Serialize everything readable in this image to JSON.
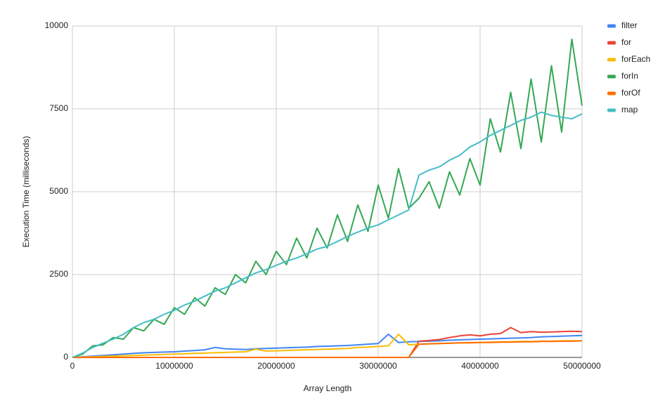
{
  "chart_data": {
    "type": "line",
    "xlabel": "Array Length",
    "ylabel": "Execution Time (milliseconds)",
    "xlim": [
      0,
      50000000
    ],
    "xticks": [
      0,
      10000000,
      20000000,
      30000000,
      40000000,
      50000000
    ],
    "ylim": [
      0,
      10000
    ],
    "yticks": [
      0,
      2500,
      5000,
      7500,
      10000
    ],
    "grid": true,
    "legend": "right",
    "x": [
      0,
      1000000,
      2000000,
      3000000,
      4000000,
      5000000,
      6000000,
      7000000,
      8000000,
      9000000,
      10000000,
      11000000,
      12000000,
      13000000,
      14000000,
      15000000,
      16000000,
      17000000,
      18000000,
      19000000,
      20000000,
      21000000,
      22000000,
      23000000,
      24000000,
      25000000,
      26000000,
      27000000,
      28000000,
      29000000,
      30000000,
      31000000,
      32000000,
      33000000,
      34000000,
      35000000,
      36000000,
      37000000,
      38000000,
      39000000,
      40000000,
      41000000,
      42000000,
      43000000,
      44000000,
      45000000,
      46000000,
      47000000,
      48000000,
      49000000,
      50000000
    ],
    "series": [
      {
        "name": "filter",
        "color": "#4285f4",
        "values": [
          0,
          20,
          40,
          60,
          80,
          100,
          120,
          140,
          150,
          160,
          170,
          190,
          210,
          230,
          300,
          260,
          250,
          240,
          260,
          270,
          280,
          290,
          300,
          310,
          330,
          340,
          350,
          360,
          380,
          400,
          420,
          700,
          450,
          470,
          480,
          490,
          500,
          520,
          530,
          540,
          550,
          560,
          570,
          580,
          590,
          600,
          620,
          630,
          640,
          650,
          660
        ]
      },
      {
        "name": "for",
        "color": "#ea4335",
        "values": [
          0,
          0,
          0,
          0,
          0,
          0,
          0,
          0,
          0,
          0,
          0,
          0,
          0,
          0,
          0,
          0,
          0,
          0,
          0,
          0,
          0,
          0,
          0,
          0,
          0,
          0,
          0,
          0,
          0,
          0,
          0,
          0,
          0,
          0,
          490,
          510,
          540,
          600,
          650,
          680,
          650,
          700,
          720,
          900,
          750,
          780,
          760,
          770,
          780,
          790,
          780
        ]
      },
      {
        "name": "forEach",
        "color": "#fbbc04",
        "values": [
          0,
          10,
          20,
          30,
          40,
          50,
          60,
          70,
          80,
          90,
          100,
          110,
          120,
          130,
          140,
          150,
          160,
          170,
          250,
          190,
          200,
          210,
          220,
          230,
          240,
          250,
          260,
          270,
          300,
          310,
          330,
          350,
          700,
          380,
          400,
          410,
          420,
          430,
          440,
          450,
          450,
          460,
          470,
          470,
          480,
          480,
          490,
          490,
          500,
          500,
          500
        ]
      },
      {
        "name": "forIn",
        "color": "#34a853",
        "values": [
          0,
          100,
          350,
          380,
          600,
          550,
          900,
          800,
          1150,
          1000,
          1500,
          1300,
          1800,
          1550,
          2100,
          1900,
          2500,
          2250,
          2900,
          2500,
          3200,
          2800,
          3600,
          3000,
          3900,
          3300,
          4300,
          3500,
          4600,
          3800,
          5200,
          4200,
          5700,
          4500,
          4800,
          5300,
          4500,
          5600,
          4900,
          6000,
          5200,
          7200,
          6200,
          8000,
          6300,
          8400,
          6500,
          8800,
          6800,
          9600,
          7600
        ]
      },
      {
        "name": "forOf",
        "color": "#ff6d01",
        "values": [
          0,
          0,
          0,
          0,
          0,
          0,
          0,
          0,
          0,
          0,
          0,
          0,
          0,
          0,
          0,
          0,
          0,
          0,
          0,
          0,
          0,
          0,
          0,
          0,
          0,
          0,
          0,
          0,
          0,
          0,
          0,
          0,
          0,
          0,
          400,
          410,
          420,
          430,
          440,
          440,
          450,
          450,
          460,
          460,
          470,
          470,
          480,
          480,
          490,
          490,
          500
        ]
      },
      {
        "name": "map",
        "color": "#46bdc6",
        "values": [
          0,
          130,
          300,
          430,
          550,
          700,
          900,
          1050,
          1150,
          1300,
          1420,
          1580,
          1700,
          1850,
          2000,
          2100,
          2250,
          2400,
          2550,
          2650,
          2780,
          2900,
          3000,
          3130,
          3270,
          3350,
          3500,
          3650,
          3780,
          3900,
          4000,
          4150,
          4300,
          4450,
          5500,
          5650,
          5750,
          5950,
          6100,
          6350,
          6500,
          6700,
          6850,
          7000,
          7150,
          7250,
          7400,
          7300,
          7250,
          7200,
          7350
        ]
      }
    ]
  }
}
